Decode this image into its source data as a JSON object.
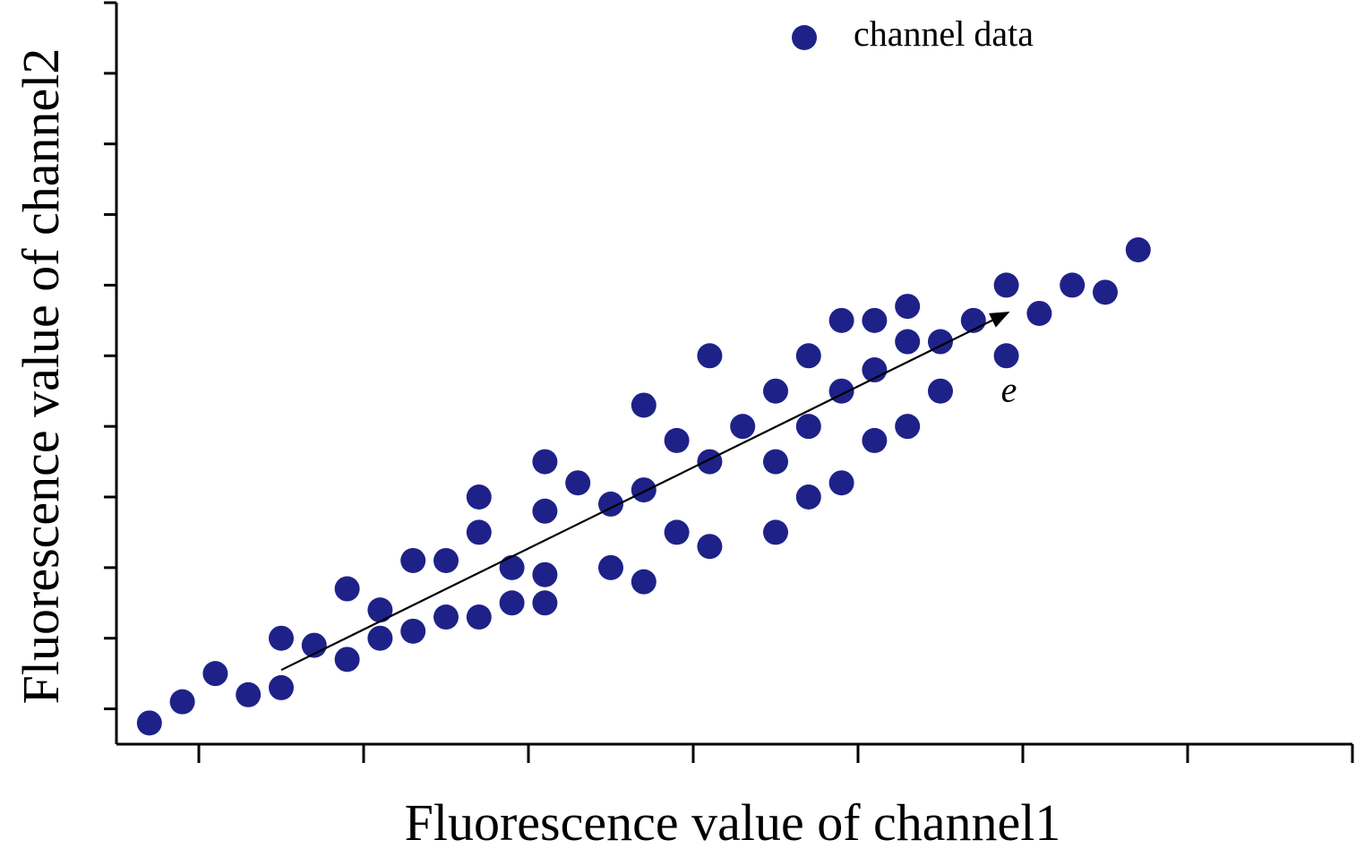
{
  "chart_data": {
    "type": "scatter",
    "title": "",
    "xlabel": "Fluorescence value of channel1",
    "ylabel": "Fluorescence value of channel2",
    "xlim": [
      0.5,
      8.0
    ],
    "ylim": [
      0.0,
      10.5
    ],
    "xticks": [
      1,
      2,
      3,
      4,
      5,
      6,
      7,
      8
    ],
    "yticks": [
      0.5,
      1.5,
      2.5,
      3.5,
      4.5,
      5.5,
      6.5,
      7.5,
      8.5,
      9.5,
      10.5
    ],
    "tick_labels_shown": false,
    "grid": false,
    "legend": {
      "position": "top-right",
      "entries": [
        "channel data"
      ]
    },
    "series": [
      {
        "name": "channel data",
        "color": "#1e2288",
        "marker": "circle",
        "points": [
          {
            "x": 0.7,
            "y": 0.3
          },
          {
            "x": 0.9,
            "y": 0.6
          },
          {
            "x": 1.1,
            "y": 1.0
          },
          {
            "x": 1.3,
            "y": 0.7
          },
          {
            "x": 1.5,
            "y": 0.8
          },
          {
            "x": 1.5,
            "y": 1.5
          },
          {
            "x": 1.7,
            "y": 1.4
          },
          {
            "x": 1.9,
            "y": 1.2
          },
          {
            "x": 1.9,
            "y": 2.2
          },
          {
            "x": 2.1,
            "y": 1.5
          },
          {
            "x": 2.1,
            "y": 1.9
          },
          {
            "x": 2.3,
            "y": 1.6
          },
          {
            "x": 2.3,
            "y": 2.6
          },
          {
            "x": 2.5,
            "y": 1.8
          },
          {
            "x": 2.5,
            "y": 2.6
          },
          {
            "x": 2.7,
            "y": 1.8
          },
          {
            "x": 2.7,
            "y": 3.0
          },
          {
            "x": 2.7,
            "y": 3.5
          },
          {
            "x": 2.9,
            "y": 2.0
          },
          {
            "x": 2.9,
            "y": 2.5
          },
          {
            "x": 3.1,
            "y": 2.0
          },
          {
            "x": 3.1,
            "y": 2.4
          },
          {
            "x": 3.1,
            "y": 3.3
          },
          {
            "x": 3.1,
            "y": 4.0
          },
          {
            "x": 3.3,
            "y": 3.7
          },
          {
            "x": 3.5,
            "y": 2.5
          },
          {
            "x": 3.5,
            "y": 3.4
          },
          {
            "x": 3.7,
            "y": 2.3
          },
          {
            "x": 3.7,
            "y": 3.6
          },
          {
            "x": 3.7,
            "y": 4.8
          },
          {
            "x": 3.9,
            "y": 3.0
          },
          {
            "x": 3.9,
            "y": 4.3
          },
          {
            "x": 4.1,
            "y": 2.8
          },
          {
            "x": 4.1,
            "y": 4.0
          },
          {
            "x": 4.1,
            "y": 5.5
          },
          {
            "x": 4.3,
            "y": 4.5
          },
          {
            "x": 4.5,
            "y": 3.0
          },
          {
            "x": 4.5,
            "y": 4.0
          },
          {
            "x": 4.5,
            "y": 5.0
          },
          {
            "x": 4.7,
            "y": 3.5
          },
          {
            "x": 4.7,
            "y": 4.5
          },
          {
            "x": 4.7,
            "y": 5.5
          },
          {
            "x": 4.9,
            "y": 3.7
          },
          {
            "x": 4.9,
            "y": 5.0
          },
          {
            "x": 4.9,
            "y": 6.0
          },
          {
            "x": 5.1,
            "y": 4.3
          },
          {
            "x": 5.1,
            "y": 5.3
          },
          {
            "x": 5.1,
            "y": 6.0
          },
          {
            "x": 5.3,
            "y": 4.5
          },
          {
            "x": 5.3,
            "y": 5.7
          },
          {
            "x": 5.3,
            "y": 6.2
          },
          {
            "x": 5.5,
            "y": 5.0
          },
          {
            "x": 5.5,
            "y": 5.7
          },
          {
            "x": 5.7,
            "y": 6.0
          },
          {
            "x": 5.9,
            "y": 5.5
          },
          {
            "x": 5.9,
            "y": 6.5
          },
          {
            "x": 6.1,
            "y": 6.1
          },
          {
            "x": 6.3,
            "y": 6.5
          },
          {
            "x": 6.5,
            "y": 6.4
          },
          {
            "x": 6.7,
            "y": 7.0
          }
        ]
      }
    ],
    "annotations": [
      {
        "type": "arrow",
        "label": "e",
        "from": {
          "x": 1.5,
          "y": 1.05
        },
        "to": {
          "x": 5.9,
          "y": 6.1
        },
        "label_at": {
          "x": 5.9,
          "y": 5.0
        }
      }
    ]
  }
}
